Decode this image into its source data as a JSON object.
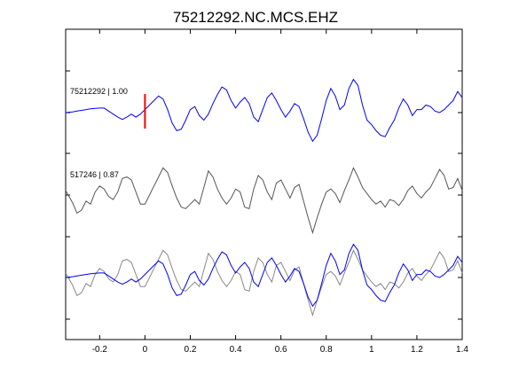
{
  "chart_data": {
    "type": "line",
    "title": "75212292.NC.MCS.EHZ",
    "xlabel": "",
    "ylabel": "",
    "xlim": [
      -0.35,
      1.4
    ],
    "x_ticks": [
      -0.2,
      0,
      0.2,
      0.4,
      0.6,
      0.8,
      1,
      1.2,
      1.4
    ],
    "x_tick_labels": [
      "-0.2",
      "0",
      "0.2",
      "0.4",
      "0.6",
      "0.8",
      "1",
      "1.2",
      "1.4"
    ],
    "grid": false,
    "pick_time": 0,
    "pick_color": "#ff0000",
    "colors": {
      "master": "#0000ff",
      "correlated": "#555555",
      "overlay": "#888888"
    },
    "traces": [
      {
        "label": "75212292 | 1.00",
        "color": "#0000ff",
        "x": [
          -0.35,
          -0.32,
          -0.3,
          -0.28,
          -0.26,
          -0.24,
          -0.22,
          -0.2,
          -0.18,
          -0.16,
          -0.14,
          -0.12,
          -0.1,
          -0.08,
          -0.06,
          -0.04,
          -0.02,
          0,
          0.02,
          0.04,
          0.06,
          0.08,
          0.1,
          0.12,
          0.14,
          0.16,
          0.18,
          0.2,
          0.22,
          0.24,
          0.26,
          0.28,
          0.3,
          0.32,
          0.34,
          0.36,
          0.38,
          0.4,
          0.42,
          0.44,
          0.46,
          0.48,
          0.5,
          0.52,
          0.54,
          0.56,
          0.58,
          0.6,
          0.62,
          0.64,
          0.66,
          0.68,
          0.7,
          0.72,
          0.74,
          0.76,
          0.78,
          0.8,
          0.82,
          0.84,
          0.86,
          0.88,
          0.9,
          0.92,
          0.94,
          0.96,
          0.98,
          1,
          1.02,
          1.04,
          1.06,
          1.08,
          1.1,
          1.12,
          1.14,
          1.16,
          1.18,
          1.2,
          1.22,
          1.24,
          1.26,
          1.28,
          1.3,
          1.32,
          1.34,
          1.36,
          1.38,
          1.4
        ],
        "y": [
          0,
          0.05,
          0.1,
          0.15,
          0.2,
          0.25,
          0.28,
          0.3,
          0.3,
          0.1,
          -0.1,
          -0.3,
          -0.45,
          -0.3,
          -0.1,
          -0.3,
          -0.1,
          0.2,
          0.5,
          0.8,
          1.1,
          0.9,
          0.2,
          -0.7,
          -1.2,
          -1.1,
          -0.5,
          0.2,
          0.4,
          -0.2,
          -0.5,
          -0.1,
          0.6,
          1.2,
          1.7,
          1.5,
          0.8,
          0.3,
          0.7,
          1.0,
          0.6,
          -0.3,
          -0.6,
          0.2,
          1.0,
          1.3,
          0.8,
          0.2,
          -0.3,
          0.1,
          0.6,
          0.4,
          -0.4,
          -1.3,
          -1.9,
          -1.5,
          -0.4,
          0.8,
          1.6,
          1.1,
          0.2,
          0.5,
          1.6,
          2.2,
          1.8,
          0.5,
          -0.5,
          -0.8,
          -1.2,
          -1.5,
          -1.6,
          -1.0,
          -0.5,
          0.3,
          0.9,
          0.5,
          -0.2,
          0.2,
          0.2,
          0.5,
          0.4,
          0.1,
          0,
          0.2,
          0.5,
          0.8,
          1.4,
          1.0
        ]
      },
      {
        "label": "517246 | 0.87",
        "color": "#555555",
        "x": [
          -0.35,
          -0.32,
          -0.3,
          -0.28,
          -0.26,
          -0.24,
          -0.22,
          -0.2,
          -0.18,
          -0.16,
          -0.14,
          -0.12,
          -0.1,
          -0.08,
          -0.06,
          -0.04,
          -0.02,
          0,
          0.02,
          0.04,
          0.06,
          0.08,
          0.1,
          0.12,
          0.14,
          0.16,
          0.18,
          0.2,
          0.22,
          0.24,
          0.26,
          0.28,
          0.3,
          0.32,
          0.34,
          0.36,
          0.38,
          0.4,
          0.42,
          0.44,
          0.46,
          0.48,
          0.5,
          0.52,
          0.54,
          0.56,
          0.58,
          0.6,
          0.62,
          0.64,
          0.66,
          0.68,
          0.7,
          0.72,
          0.74,
          0.76,
          0.78,
          0.8,
          0.82,
          0.84,
          0.86,
          0.88,
          0.9,
          0.92,
          0.94,
          0.96,
          0.98,
          1,
          1.02,
          1.04,
          1.06,
          1.08,
          1.1,
          1.12,
          1.14,
          1.16,
          1.18,
          1.2,
          1.22,
          1.24,
          1.26,
          1.28,
          1.3,
          1.32,
          1.34,
          1.36,
          1.38,
          1.4
        ],
        "y": [
          0.3,
          -0.5,
          -1.2,
          -1.0,
          -0.4,
          -0.6,
          0.2,
          0.6,
          0.4,
          -0.1,
          -0.3,
          0.2,
          1.1,
          1.2,
          1.0,
          0.2,
          -0.6,
          -0.6,
          0,
          0.6,
          1.2,
          1.8,
          1.5,
          0.6,
          -0.2,
          -0.8,
          -0.9,
          -0.6,
          -0.3,
          -0.6,
          0.5,
          1.6,
          1.2,
          0.4,
          -0.2,
          -0.6,
          -0.2,
          0.4,
          0.2,
          -0.8,
          -0.9,
          0.4,
          1.3,
          1.0,
          0.2,
          -0.3,
          0.8,
          1.0,
          0.4,
          -0.2,
          0.5,
          0.7,
          -0.4,
          -1.5,
          -2.5,
          -1.5,
          -0.6,
          0.2,
          0.4,
          0.1,
          -0.5,
          0.3,
          1.0,
          1.8,
          1.2,
          0.5,
          0.1,
          -0.3,
          -0.6,
          -0.4,
          -0.8,
          -0.3,
          -0.4,
          -0.7,
          -0.3,
          0.3,
          0.6,
          0.1,
          -0.2,
          0.2,
          0.5,
          1.1,
          1.7,
          1.3,
          0.4,
          0.5,
          1.1,
          0.3
        ]
      }
    ]
  }
}
